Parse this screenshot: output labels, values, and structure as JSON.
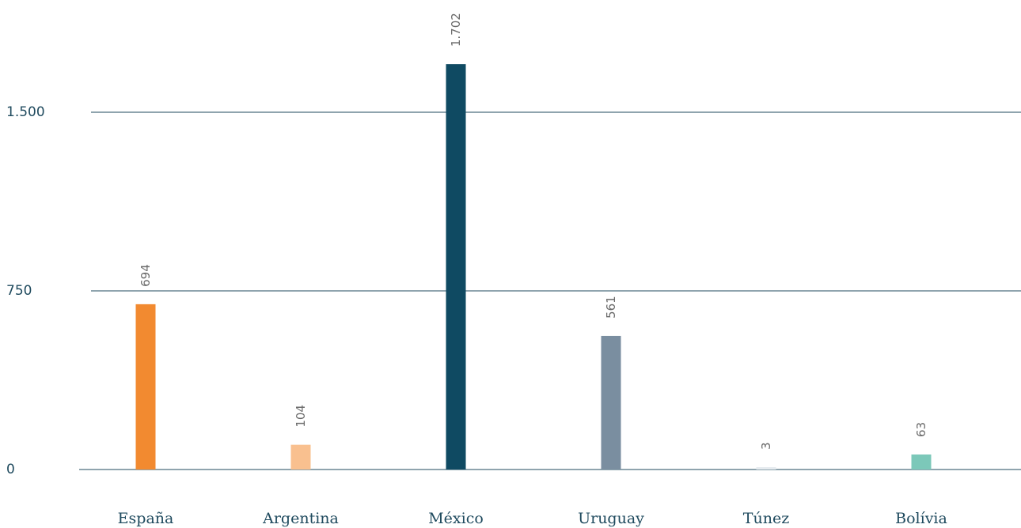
{
  "chart_data": {
    "type": "bar",
    "categories": [
      "España",
      "Argentina",
      "México",
      "Uruguay",
      "Túnez",
      "Bolívia"
    ],
    "values": [
      694,
      104,
      1702,
      561,
      3,
      63
    ],
    "value_labels": [
      "694",
      "104",
      "1.702",
      "561",
      "3",
      "63"
    ],
    "bar_colors": [
      "#f28a30",
      "#f9c08f",
      "#0f4a62",
      "#7a8ea0",
      "#e6ebef",
      "#7cc8b9"
    ],
    "yticks": [
      0,
      750,
      1500
    ],
    "ytick_labels": [
      "0",
      "750",
      "1.500"
    ],
    "ylim": [
      0,
      1800
    ],
    "grid": true,
    "legend": "none"
  }
}
